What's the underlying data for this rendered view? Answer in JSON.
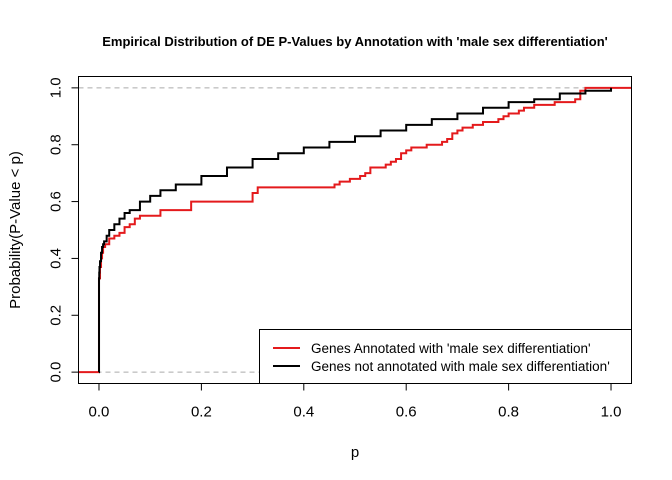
{
  "chart_data": {
    "type": "line",
    "step": true,
    "title": "Empirical Distribution of DE P-Values by Annotation with 'male sex differentiation'",
    "xlabel": "p",
    "ylabel": "Probability(P-Value < p)",
    "xlim": [
      -0.04,
      1.04
    ],
    "ylim": [
      -0.04,
      1.04
    ],
    "xticks": [
      0.0,
      0.2,
      0.4,
      0.6,
      0.8,
      1.0
    ],
    "xtick_labels": [
      "0.0",
      "0.2",
      "0.4",
      "0.6",
      "0.8",
      "1.0"
    ],
    "yticks": [
      0.0,
      0.2,
      0.4,
      0.6,
      0.8,
      1.0
    ],
    "ytick_labels": [
      "0.0",
      "0.2",
      "0.4",
      "0.6",
      "0.8",
      "1.0"
    ],
    "reference_lines": {
      "y": [
        0,
        1
      ],
      "style": "dashed",
      "color": "#aaaaaa"
    },
    "grid": false,
    "legend": {
      "position": "bottom-right",
      "entries": [
        {
          "label": "Genes Annotated with 'male sex differentiation'",
          "color": "#e41a1c"
        },
        {
          "label": "Genes not annotated with male sex differentiation'",
          "color": "#000000"
        }
      ]
    },
    "series": [
      {
        "name": "Genes Annotated with 'male sex differentiation'",
        "color": "#e41a1c",
        "x": [
          -0.04,
          0.0,
          0.0,
          0.002,
          0.004,
          0.006,
          0.008,
          0.012,
          0.02,
          0.03,
          0.04,
          0.05,
          0.06,
          0.07,
          0.08,
          0.12,
          0.18,
          0.3,
          0.31,
          0.38,
          0.46,
          0.47,
          0.49,
          0.51,
          0.52,
          0.53,
          0.56,
          0.57,
          0.58,
          0.59,
          0.6,
          0.61,
          0.62,
          0.64,
          0.67,
          0.68,
          0.69,
          0.7,
          0.71,
          0.73,
          0.75,
          0.78,
          0.79,
          0.8,
          0.82,
          0.83,
          0.85,
          0.89,
          0.93,
          0.94,
          0.95,
          0.97,
          1.0,
          1.04
        ],
        "y": [
          0.0,
          0.0,
          0.33,
          0.37,
          0.4,
          0.42,
          0.44,
          0.45,
          0.47,
          0.48,
          0.49,
          0.51,
          0.52,
          0.54,
          0.55,
          0.57,
          0.6,
          0.63,
          0.65,
          0.65,
          0.66,
          0.67,
          0.68,
          0.69,
          0.7,
          0.72,
          0.73,
          0.74,
          0.75,
          0.77,
          0.78,
          0.79,
          0.79,
          0.8,
          0.81,
          0.82,
          0.84,
          0.85,
          0.86,
          0.87,
          0.88,
          0.89,
          0.9,
          0.91,
          0.92,
          0.93,
          0.94,
          0.95,
          0.96,
          0.99,
          1.0,
          1.0,
          1.0,
          1.0
        ]
      },
      {
        "name": "Genes not annotated with male sex differentiation'",
        "color": "#000000",
        "x": [
          0.0,
          0.0001,
          0.0005,
          0.001,
          0.002,
          0.004,
          0.006,
          0.008,
          0.01,
          0.015,
          0.02,
          0.03,
          0.04,
          0.05,
          0.06,
          0.08,
          0.1,
          0.12,
          0.15,
          0.2,
          0.25,
          0.3,
          0.35,
          0.4,
          0.45,
          0.5,
          0.55,
          0.6,
          0.65,
          0.7,
          0.75,
          0.8,
          0.85,
          0.9,
          0.95,
          1.0
        ],
        "y": [
          0.0,
          0.33,
          0.35,
          0.37,
          0.39,
          0.42,
          0.44,
          0.45,
          0.46,
          0.48,
          0.5,
          0.52,
          0.54,
          0.56,
          0.57,
          0.6,
          0.62,
          0.64,
          0.66,
          0.69,
          0.72,
          0.75,
          0.77,
          0.79,
          0.81,
          0.83,
          0.85,
          0.87,
          0.89,
          0.91,
          0.93,
          0.95,
          0.96,
          0.98,
          0.99,
          1.0
        ]
      }
    ]
  }
}
